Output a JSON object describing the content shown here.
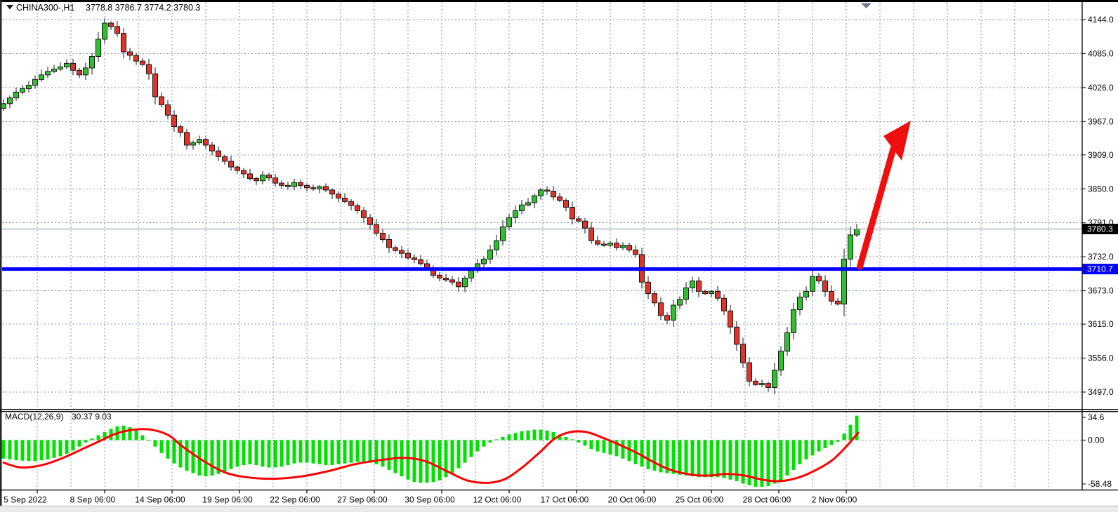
{
  "window": {
    "title_symbol": "CHINA300-,H1",
    "title_quote": "3778.8 3786.7 3774.2 3780.3"
  },
  "indicator": {
    "label": "MACD(12,26,9)",
    "values": "30.37 9.03"
  },
  "price_axis": {
    "ticks": [
      "4144.0",
      "4085.0",
      "4026.0",
      "3967.0",
      "3909.0",
      "3850.0",
      "3791.0",
      "3732.0",
      "3673.0",
      "3615.0",
      "3556.0",
      "3497.0"
    ],
    "current_price_label": "3780.3",
    "hline_label": "3710.7"
  },
  "macd_axis": {
    "ticks": [
      "34.6",
      "0.00",
      "-58.48"
    ]
  },
  "time_axis": {
    "labels": [
      "5 Sep 2022",
      "8 Sep 06:00",
      "14 Sep 06:00",
      "19 Sep 06:00",
      "22 Sep 06:00",
      "27 Sep 06:00",
      "30 Sep 06:00",
      "12 Oct 06:00",
      "17 Oct 06:00",
      "20 Oct 06:00",
      "25 Oct 06:00",
      "28 Oct 06:00",
      "2 Nov 06:00"
    ]
  },
  "colors": {
    "bull": "#2fbf2f",
    "bear": "#e23329",
    "candle_border": "#161616",
    "grid": "#8593a2",
    "current_price_line": "#7d8c9b",
    "hline": "#0000ff",
    "arrow": "#ee0f0f",
    "hist": "#00e100",
    "signal": "#ff0000",
    "marker_current_bg": "#000000",
    "marker_hline_bg": "#0000ff",
    "marker_text": "#ffffff"
  },
  "chart_data": [
    {
      "type": "candlestick",
      "title": "CHINA300-,H1",
      "ohlc_display": {
        "open": 3778.8,
        "high": 3786.7,
        "low": 3774.2,
        "close": 3780.3
      },
      "y_ticks": [
        4144.0,
        4085.0,
        4026.0,
        3967.0,
        3909.0,
        3850.0,
        3791.0,
        3732.0,
        3673.0,
        3615.0,
        3556.0,
        3497.0
      ],
      "ylim": [
        3470,
        4165
      ],
      "x_tick_labels": [
        "5 Sep 2022",
        "8 Sep 06:00",
        "14 Sep 06:00",
        "19 Sep 06:00",
        "22 Sep 06:00",
        "27 Sep 06:00",
        "30 Sep 06:00",
        "12 Oct 06:00",
        "17 Oct 06:00",
        "20 Oct 06:00",
        "25 Oct 06:00",
        "28 Oct 06:00",
        "2 Nov 06:00"
      ],
      "grid": true,
      "current_price": 3780.3,
      "horizontal_line": 3710.7,
      "annotation": "red-up-arrow",
      "closes": [
        3998,
        4008,
        4018,
        4024,
        4030,
        4040,
        4048,
        4054,
        4058,
        4062,
        4068,
        4056,
        4048,
        4060,
        4080,
        4110,
        4138,
        4132,
        4120,
        4088,
        4082,
        4072,
        4066,
        4050,
        4010,
        3996,
        3978,
        3958,
        3948,
        3926,
        3930,
        3936,
        3926,
        3916,
        3906,
        3898,
        3888,
        3882,
        3876,
        3868,
        3864,
        3874,
        3869,
        3860,
        3856,
        3854,
        3861,
        3856,
        3852,
        3850,
        3854,
        3848,
        3841,
        3834,
        3828,
        3821,
        3812,
        3800,
        3788,
        3773,
        3762,
        3748,
        3743,
        3738,
        3730,
        3727,
        3720,
        3712,
        3700,
        3695,
        3692,
        3688,
        3680,
        3695,
        3708,
        3720,
        3728,
        3744,
        3760,
        3784,
        3800,
        3812,
        3822,
        3826,
        3838,
        3848,
        3846,
        3836,
        3830,
        3818,
        3798,
        3794,
        3782,
        3760,
        3754,
        3752,
        3756,
        3748,
        3752,
        3744,
        3736,
        3688,
        3668,
        3652,
        3630,
        3622,
        3648,
        3658,
        3678,
        3690,
        3672,
        3668,
        3672,
        3660,
        3638,
        3610,
        3580,
        3548,
        3516,
        3510,
        3512,
        3505,
        3535,
        3568,
        3600,
        3640,
        3662,
        3672,
        3698,
        3690,
        3672,
        3655,
        3650,
        3728,
        3770,
        3780.3
      ]
    },
    {
      "type": "bar",
      "title": "MACD(12,26,9)",
      "main_value": 30.37,
      "signal_value": 9.03,
      "y_ticks": [
        34.6,
        0.0,
        -58.48
      ],
      "histogram": [
        -23,
        -24,
        -25,
        -25.5,
        -26,
        -26,
        -25,
        -24,
        -22,
        -20,
        -17,
        -13,
        -8,
        -3,
        2,
        6,
        10,
        14,
        17,
        18,
        16,
        12,
        6,
        0,
        -8,
        -16,
        -23,
        -29,
        -34,
        -38,
        -41,
        -44,
        -45,
        -44,
        -42,
        -39,
        -36,
        -33,
        -31,
        -30,
        -31,
        -33,
        -34,
        -34,
        -33,
        -31,
        -29,
        -28,
        -28,
        -29,
        -30,
        -31,
        -31,
        -30,
        -29,
        -28,
        -27,
        -27,
        -28,
        -30,
        -33,
        -37,
        -41,
        -45,
        -49,
        -52,
        -53,
        -53,
        -52,
        -50,
        -46,
        -41,
        -35,
        -28,
        -21,
        -14,
        -8,
        -3,
        1,
        4,
        7,
        9,
        11,
        12,
        13,
        13,
        12,
        10,
        7,
        4,
        1,
        -3,
        -7,
        -11,
        -14,
        -16,
        -18,
        -20,
        -23,
        -26,
        -30,
        -33,
        -36,
        -38,
        -40,
        -41,
        -42,
        -43,
        -44,
        -45,
        -46,
        -46,
        -46,
        -46,
        -47,
        -49,
        -51,
        -54,
        -56,
        -58,
        -58,
        -57,
        -54,
        -50,
        -44,
        -37,
        -30,
        -24,
        -19,
        -14,
        -10,
        -6,
        -2,
        8,
        19,
        30.4
      ],
      "signal_line_anchors": [
        [
          5,
          -28
        ],
        [
          30,
          -34
        ],
        [
          60,
          -31
        ],
        [
          90,
          -22
        ],
        [
          120,
          -10
        ],
        [
          145,
          0
        ],
        [
          165,
          8
        ],
        [
          190,
          13
        ],
        [
          215,
          13
        ],
        [
          240,
          6
        ],
        [
          260,
          -8
        ],
        [
          290,
          -26
        ],
        [
          320,
          -40
        ],
        [
          350,
          -46
        ],
        [
          390,
          -48
        ],
        [
          430,
          -45
        ],
        [
          470,
          -38
        ],
        [
          505,
          -30
        ],
        [
          540,
          -25
        ],
        [
          575,
          -22
        ],
        [
          605,
          -26
        ],
        [
          635,
          -38
        ],
        [
          665,
          -50
        ],
        [
          695,
          -53
        ],
        [
          720,
          -48
        ],
        [
          745,
          -33
        ],
        [
          770,
          -14
        ],
        [
          790,
          2
        ],
        [
          812,
          10
        ],
        [
          835,
          10
        ],
        [
          858,
          3
        ],
        [
          880,
          -5
        ],
        [
          905,
          -15
        ],
        [
          930,
          -27
        ],
        [
          955,
          -37
        ],
        [
          985,
          -43
        ],
        [
          1010,
          -44
        ],
        [
          1035,
          -42
        ],
        [
          1060,
          -44
        ],
        [
          1085,
          -49
        ],
        [
          1110,
          -51
        ],
        [
          1135,
          -47
        ],
        [
          1160,
          -38
        ],
        [
          1185,
          -25
        ],
        [
          1205,
          -8
        ],
        [
          1215,
          2
        ],
        [
          1222,
          9
        ]
      ]
    }
  ]
}
